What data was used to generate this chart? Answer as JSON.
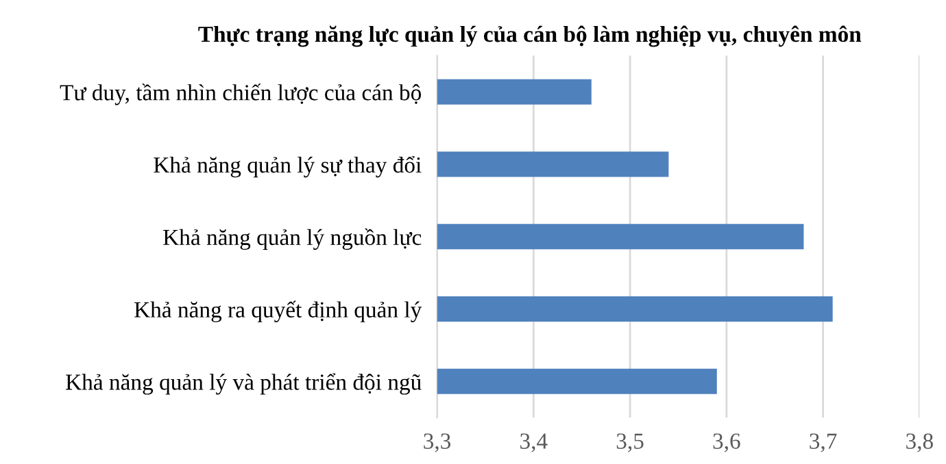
{
  "chart_data": {
    "type": "bar",
    "orientation": "horizontal",
    "title": "Thực trạng năng lực quản lý của cán bộ làm nghiệp vụ, chuyên môn",
    "categories": [
      "Tư duy, tầm nhìn chiến lược của cán bộ",
      "Khả năng quản lý sự thay đổi",
      "Khả năng quản lý nguồn lực",
      "Khả năng ra quyết định quản lý",
      "Khả năng quản lý và phát triển đội ngũ"
    ],
    "values": [
      3.46,
      3.54,
      3.68,
      3.71,
      3.59
    ],
    "color": "#4f81bd",
    "xlim": [
      3.3,
      3.8
    ],
    "xticks": [
      {
        "value": 3.3,
        "label": "3,3"
      },
      {
        "value": 3.4,
        "label": "3,4"
      },
      {
        "value": 3.5,
        "label": "3,5"
      },
      {
        "value": 3.6,
        "label": "3,6"
      },
      {
        "value": 3.7,
        "label": "3,7"
      },
      {
        "value": 3.8,
        "label": "3,8"
      }
    ],
    "grid": "x"
  }
}
